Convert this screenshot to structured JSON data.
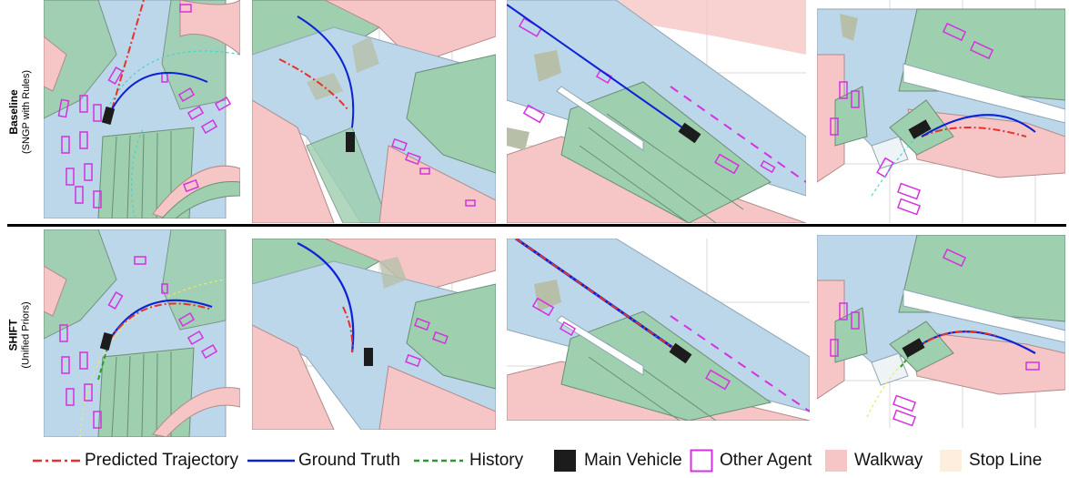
{
  "rows": [
    {
      "title": "Baseline",
      "subtitle": "(SNGP with Rules)"
    },
    {
      "title": "SHIFT",
      "subtitle": "(Unified Priors)"
    }
  ],
  "legend": {
    "predicted": "Predicted Trajectory",
    "ground_truth": "Ground Truth",
    "history": "History",
    "main_vehicle": "Main Vehicle",
    "other_agent": "Other Agent",
    "walkway": "Walkway",
    "stop_line": "Stop Line"
  },
  "colors": {
    "predicted": "#e8312a",
    "ground_truth": "#0b22d6",
    "history": "#2f9a2f",
    "main_vehicle": "#1c1c1c",
    "other_agent": "#d531e0",
    "walkway": "#f6c6c6",
    "stop_line": "#fdeedd",
    "lane": "#bcd6ea",
    "road_block": "#9ecfae"
  }
}
